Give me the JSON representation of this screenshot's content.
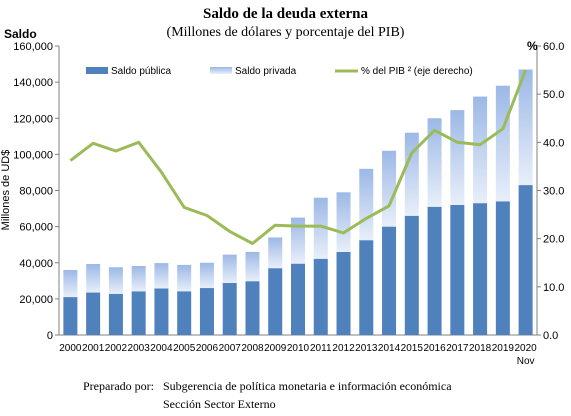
{
  "chart_data": {
    "type": "bar",
    "title": "Saldo de la deuda externa",
    "subtitle": "(Millones  de dólares y porcentaje del PIB)",
    "ylabel_left_top": "Saldo",
    "ylabel_left": "Millones de UD$",
    "ylabel_right_top": "%",
    "categories": [
      "2000",
      "2001",
      "2002",
      "2003",
      "2004",
      "2005",
      "2006",
      "2007",
      "2008",
      "2009",
      "2010",
      "2011",
      "2012",
      "2013",
      "2014",
      "2015",
      "2016",
      "2017",
      "2018",
      "2019",
      "2020"
    ],
    "category_sublabel": {
      "index": 20,
      "text": "Nov"
    },
    "stacked": true,
    "series": [
      {
        "name": "Saldo pública",
        "kind": "bar",
        "color": "#4f81bd",
        "values": [
          21000,
          23500,
          22800,
          24200,
          25800,
          24200,
          26000,
          28800,
          29800,
          37000,
          39500,
          42200,
          46000,
          52500,
          60000,
          66000,
          71000,
          72000,
          73000,
          74000,
          83000
        ]
      },
      {
        "name": "Saldo privada",
        "kind": "bar",
        "color": "#c6d9f1",
        "values": [
          15000,
          15800,
          14700,
          14000,
          14000,
          14600,
          14000,
          15700,
          16200,
          17000,
          25500,
          33800,
          33000,
          39500,
          42000,
          46000,
          49000,
          52500,
          59000,
          64000,
          64000
        ]
      },
      {
        "name": "% del PIB ² (eje derecho)",
        "kind": "line",
        "axis": "right",
        "color": "#9bbb59",
        "values": [
          36.2,
          39.8,
          38.2,
          40.0,
          33.8,
          26.5,
          24.8,
          21.5,
          19.0,
          22.8,
          22.6,
          22.6,
          21.2,
          24.2,
          26.8,
          37.8,
          42.5,
          40.0,
          39.5,
          42.8,
          55.0
        ]
      }
    ],
    "ylim": [
      0,
      160000
    ],
    "yticks": [
      "0",
      "20,000",
      "40,000",
      "60,000",
      "80,000",
      "100,000",
      "120,000",
      "140,000",
      "160,000"
    ],
    "y2lim": [
      0,
      60
    ],
    "y2ticks": [
      "0.0",
      "10.0",
      "20.0",
      "30.0",
      "40.0",
      "50.0",
      "60.0"
    ],
    "legend_position": "top",
    "grid": false
  },
  "source": {
    "label": "Preparado por:",
    "line1": "Subgerencia de política monetaria e información económica",
    "line2": "Sección Sector Externo"
  }
}
